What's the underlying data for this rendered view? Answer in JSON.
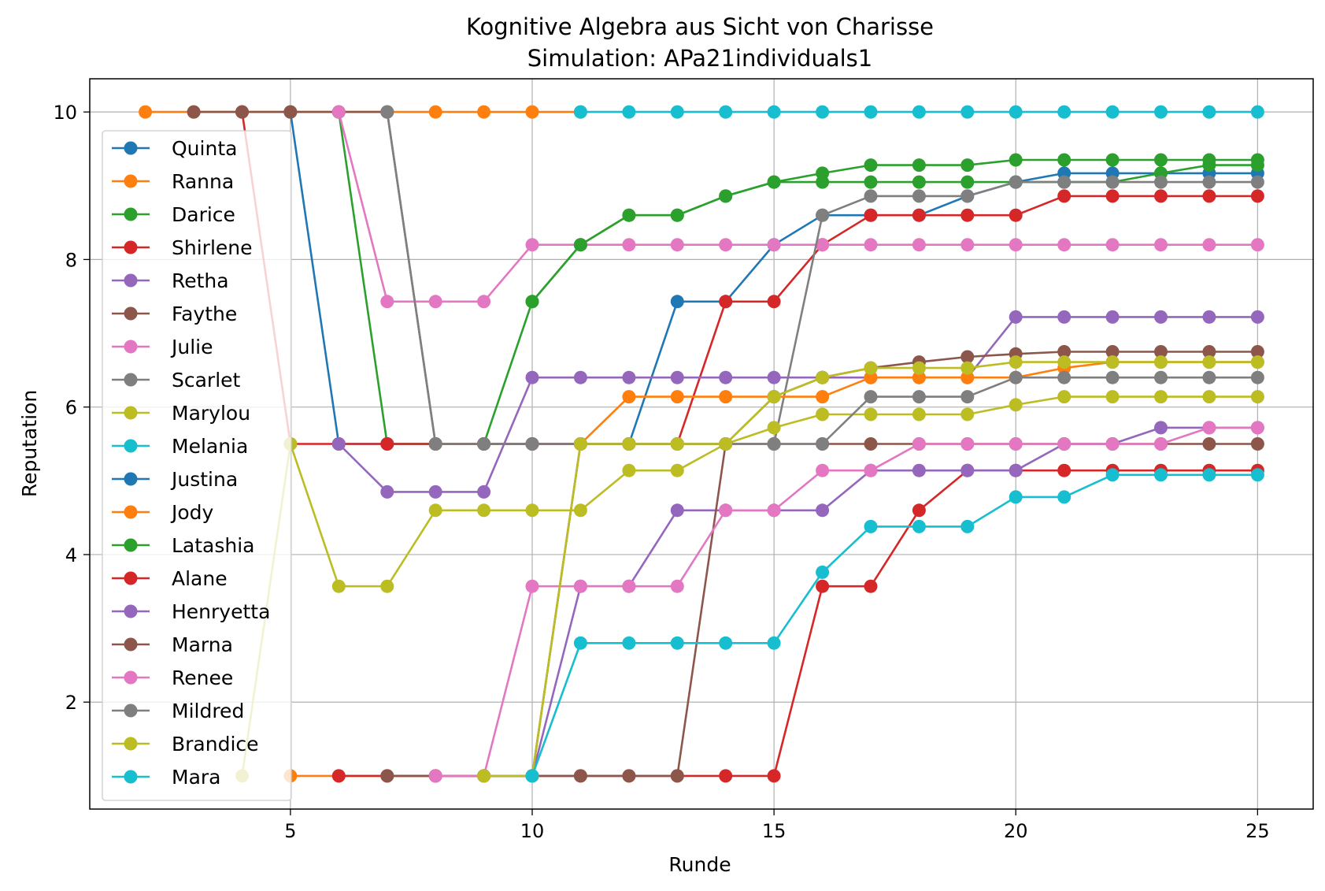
{
  "chart_data": {
    "type": "line",
    "title": "Kognitive Algebra aus Sicht von Charisse",
    "subtitle": "Simulation: APa21individuals1",
    "xlabel": "Runde",
    "ylabel": "Reputation",
    "xlim": [
      0.85,
      26.15
    ],
    "ylim": [
      0.55,
      10.45
    ],
    "xticks": [
      5,
      10,
      15,
      20,
      25
    ],
    "yticks": [
      2,
      4,
      6,
      8,
      10
    ],
    "grid": true,
    "legend_position": "left",
    "series": [
      {
        "name": "Quinta",
        "color": "#1f77b4",
        "x": [
          5,
          6,
          7,
          8,
          9,
          10,
          11,
          12,
          13,
          14,
          15,
          16,
          17,
          18,
          19,
          20,
          21,
          22,
          23,
          24,
          25
        ],
        "y": [
          10,
          5.5,
          5.5,
          5.5,
          5.5,
          5.5,
          5.5,
          5.5,
          7.43,
          7.43,
          8.2,
          8.6,
          8.6,
          8.6,
          8.86,
          9.05,
          9.17,
          9.17,
          9.17,
          9.17,
          9.17
        ]
      },
      {
        "name": "Ranna",
        "color": "#ff7f0e",
        "x": [
          2,
          3,
          4,
          5,
          6,
          7,
          8,
          9,
          10,
          11
        ],
        "y": [
          10,
          10,
          10,
          10,
          10,
          10,
          10,
          10,
          10,
          10
        ]
      },
      {
        "name": "Darice",
        "color": "#2ca02c",
        "x": [
          6,
          7,
          8,
          9,
          10,
          11,
          12,
          13,
          14,
          15,
          16,
          17,
          18,
          19,
          20,
          21,
          22,
          23,
          24,
          25
        ],
        "y": [
          10,
          5.5,
          5.5,
          5.5,
          7.43,
          8.2,
          8.6,
          8.6,
          8.86,
          9.05,
          9.05,
          9.05,
          9.05,
          9.05,
          9.05,
          9.05,
          9.05,
          9.17,
          9.28,
          9.28
        ]
      },
      {
        "name": "Shirlene",
        "color": "#d62728",
        "x": [
          4,
          5,
          6,
          7,
          8,
          9,
          10,
          11,
          12,
          13,
          14,
          15,
          16,
          17,
          18,
          19,
          20,
          21,
          22,
          23,
          24,
          25
        ],
        "y": [
          10,
          5.5,
          5.5,
          5.5,
          5.5,
          5.5,
          5.5,
          5.5,
          5.5,
          5.5,
          7.43,
          7.43,
          8.2,
          8.6,
          8.6,
          8.6,
          8.6,
          8.86,
          8.86,
          8.86,
          8.86,
          8.86
        ]
      },
      {
        "name": "Retha",
        "color": "#9467bd",
        "x": [
          6,
          7,
          8,
          9,
          10,
          11,
          12,
          13,
          14,
          15,
          16,
          17,
          18,
          19,
          20,
          21,
          22,
          23,
          24,
          25
        ],
        "y": [
          5.5,
          4.85,
          4.85,
          4.85,
          6.4,
          6.4,
          6.4,
          6.4,
          6.4,
          6.4,
          6.4,
          6.4,
          6.4,
          6.4,
          7.22,
          7.22,
          7.22,
          7.22,
          7.22,
          7.22
        ]
      },
      {
        "name": "Faythe",
        "color": "#8c564b",
        "x": [
          3,
          4,
          5,
          6,
          7,
          8,
          9,
          10,
          11,
          12,
          13,
          14,
          15,
          16,
          17,
          18,
          19,
          20,
          21,
          22,
          23,
          24,
          25
        ],
        "y": [
          10,
          10,
          10,
          10,
          10,
          5.5,
          5.5,
          5.5,
          5.5,
          5.5,
          5.5,
          5.5,
          6.14,
          6.4,
          6.53,
          6.61,
          6.68,
          6.72,
          6.75,
          6.75,
          6.75,
          6.75,
          6.75
        ]
      },
      {
        "name": "Julie",
        "color": "#e377c2",
        "x": [
          6,
          7,
          8,
          9,
          10,
          11,
          12,
          13,
          14,
          15,
          16,
          17,
          18,
          19,
          20,
          21,
          22,
          23,
          24,
          25
        ],
        "y": [
          10,
          7.43,
          7.43,
          7.43,
          8.2,
          8.2,
          8.2,
          8.2,
          8.2,
          8.2,
          8.2,
          8.2,
          8.2,
          8.2,
          8.2,
          8.2,
          8.2,
          8.2,
          8.2,
          8.2
        ]
      },
      {
        "name": "Scarlet",
        "color": "#7f7f7f",
        "x": [
          7,
          8,
          9,
          10,
          11,
          12,
          13,
          14,
          15,
          16,
          17,
          18,
          19,
          20,
          21,
          22,
          23,
          24,
          25
        ],
        "y": [
          10,
          5.5,
          5.5,
          5.5,
          5.5,
          5.5,
          5.5,
          5.5,
          5.5,
          8.6,
          8.86,
          8.86,
          8.86,
          9.05,
          9.05,
          9.05,
          9.05,
          9.05,
          9.05
        ]
      },
      {
        "name": "Marylou",
        "color": "#bcbd22",
        "x": [
          4,
          5,
          6,
          7,
          8,
          9,
          10,
          11,
          12,
          13,
          14,
          15,
          16,
          17,
          18,
          19,
          20,
          21,
          22,
          23,
          24,
          25
        ],
        "y": [
          1,
          5.5,
          3.57,
          3.57,
          4.6,
          4.6,
          4.6,
          4.6,
          5.14,
          5.14,
          5.5,
          5.72,
          5.9,
          5.9,
          5.9,
          5.9,
          6.03,
          6.14,
          6.14,
          6.14,
          6.14,
          6.14
        ]
      },
      {
        "name": "Melania",
        "color": "#17becf",
        "x": [
          11,
          12,
          13,
          14,
          15,
          16,
          17,
          18,
          19,
          20,
          21,
          22,
          23,
          24,
          25
        ],
        "y": [
          10,
          10,
          10,
          10,
          10,
          10,
          10,
          10,
          10,
          10,
          10,
          10,
          10,
          10,
          10
        ]
      },
      {
        "name": "Justina",
        "color": "#1f77b4",
        "x": [],
        "y": []
      },
      {
        "name": "Jody",
        "color": "#ff7f0e",
        "x": [
          5,
          6,
          7,
          8,
          9,
          10,
          11,
          12,
          13,
          14,
          15,
          16,
          17,
          18,
          19,
          20,
          21,
          22,
          23,
          24,
          25
        ],
        "y": [
          1,
          1,
          1,
          1,
          1,
          1,
          5.5,
          6.14,
          6.14,
          6.14,
          6.14,
          6.14,
          6.4,
          6.4,
          6.4,
          6.4,
          6.53,
          6.61,
          6.61,
          6.61,
          6.61
        ]
      },
      {
        "name": "Latashia",
        "color": "#2ca02c",
        "x": [
          10,
          11,
          12,
          13,
          14,
          15,
          16,
          17,
          18,
          19,
          20,
          21,
          22,
          23,
          24,
          25
        ],
        "y": [
          7.43,
          8.2,
          8.6,
          8.6,
          8.86,
          9.05,
          9.17,
          9.28,
          9.28,
          9.28,
          9.35,
          9.35,
          9.35,
          9.35,
          9.35,
          9.35
        ]
      },
      {
        "name": "Alane",
        "color": "#d62728",
        "x": [
          6,
          7,
          8,
          9,
          10,
          11,
          12,
          13,
          14,
          15,
          16,
          17,
          18,
          19,
          20,
          21,
          22,
          23,
          24,
          25
        ],
        "y": [
          1,
          1,
          1,
          1,
          1,
          1,
          1,
          1,
          1,
          1,
          3.57,
          3.57,
          4.6,
          5.14,
          5.14,
          5.14,
          5.14,
          5.14,
          5.14,
          5.14
        ]
      },
      {
        "name": "Henryetta",
        "color": "#9467bd",
        "x": [
          8,
          9,
          10,
          11,
          12,
          13,
          14,
          15,
          16,
          17,
          18,
          19,
          20,
          21,
          22,
          23,
          24,
          25
        ],
        "y": [
          1,
          1,
          1,
          3.57,
          3.57,
          4.6,
          4.6,
          4.6,
          4.6,
          5.14,
          5.14,
          5.14,
          5.14,
          5.5,
          5.5,
          5.72,
          5.72,
          5.72
        ]
      },
      {
        "name": "Marna",
        "color": "#8c564b",
        "x": [
          7,
          8,
          9,
          10,
          11,
          12,
          13,
          14,
          15,
          16,
          17,
          18,
          19,
          20,
          21,
          22,
          23,
          24,
          25
        ],
        "y": [
          1,
          1,
          1,
          1,
          1,
          1,
          1,
          5.5,
          5.5,
          5.5,
          5.5,
          5.5,
          5.5,
          5.5,
          5.5,
          5.5,
          5.5,
          5.5,
          5.5
        ]
      },
      {
        "name": "Renee",
        "color": "#e377c2",
        "x": [
          8,
          9,
          10,
          11,
          12,
          13,
          14,
          15,
          16,
          17,
          18,
          19,
          20,
          21,
          22,
          23,
          24,
          25
        ],
        "y": [
          1,
          1,
          3.57,
          3.57,
          3.57,
          3.57,
          4.6,
          4.6,
          5.14,
          5.14,
          5.5,
          5.5,
          5.5,
          5.5,
          5.5,
          5.5,
          5.72,
          5.72
        ]
      },
      {
        "name": "Mildred",
        "color": "#7f7f7f",
        "x": [
          9,
          10,
          11,
          12,
          13,
          14,
          15,
          16,
          17,
          18,
          19,
          20,
          21,
          22,
          23,
          24,
          25
        ],
        "y": [
          1,
          1,
          5.5,
          5.5,
          5.5,
          5.5,
          5.5,
          5.5,
          6.14,
          6.14,
          6.14,
          6.4,
          6.4,
          6.4,
          6.4,
          6.4,
          6.4
        ]
      },
      {
        "name": "Brandice",
        "color": "#bcbd22",
        "x": [
          9,
          10,
          11,
          12,
          13,
          14,
          15,
          16,
          17,
          18,
          19,
          20,
          21,
          22,
          23,
          24,
          25
        ],
        "y": [
          1,
          1,
          5.5,
          5.5,
          5.5,
          5.5,
          6.14,
          6.4,
          6.53,
          6.53,
          6.53,
          6.61,
          6.61,
          6.61,
          6.61,
          6.61,
          6.61
        ]
      },
      {
        "name": "Mara",
        "color": "#17becf",
        "x": [
          10,
          11,
          12,
          13,
          14,
          15,
          16,
          17,
          18,
          19,
          20,
          21,
          22,
          23,
          24,
          25
        ],
        "y": [
          1,
          2.8,
          2.8,
          2.8,
          2.8,
          2.8,
          3.76,
          4.38,
          4.38,
          4.38,
          4.78,
          4.78,
          5.08,
          5.08,
          5.08,
          5.08
        ]
      }
    ]
  }
}
